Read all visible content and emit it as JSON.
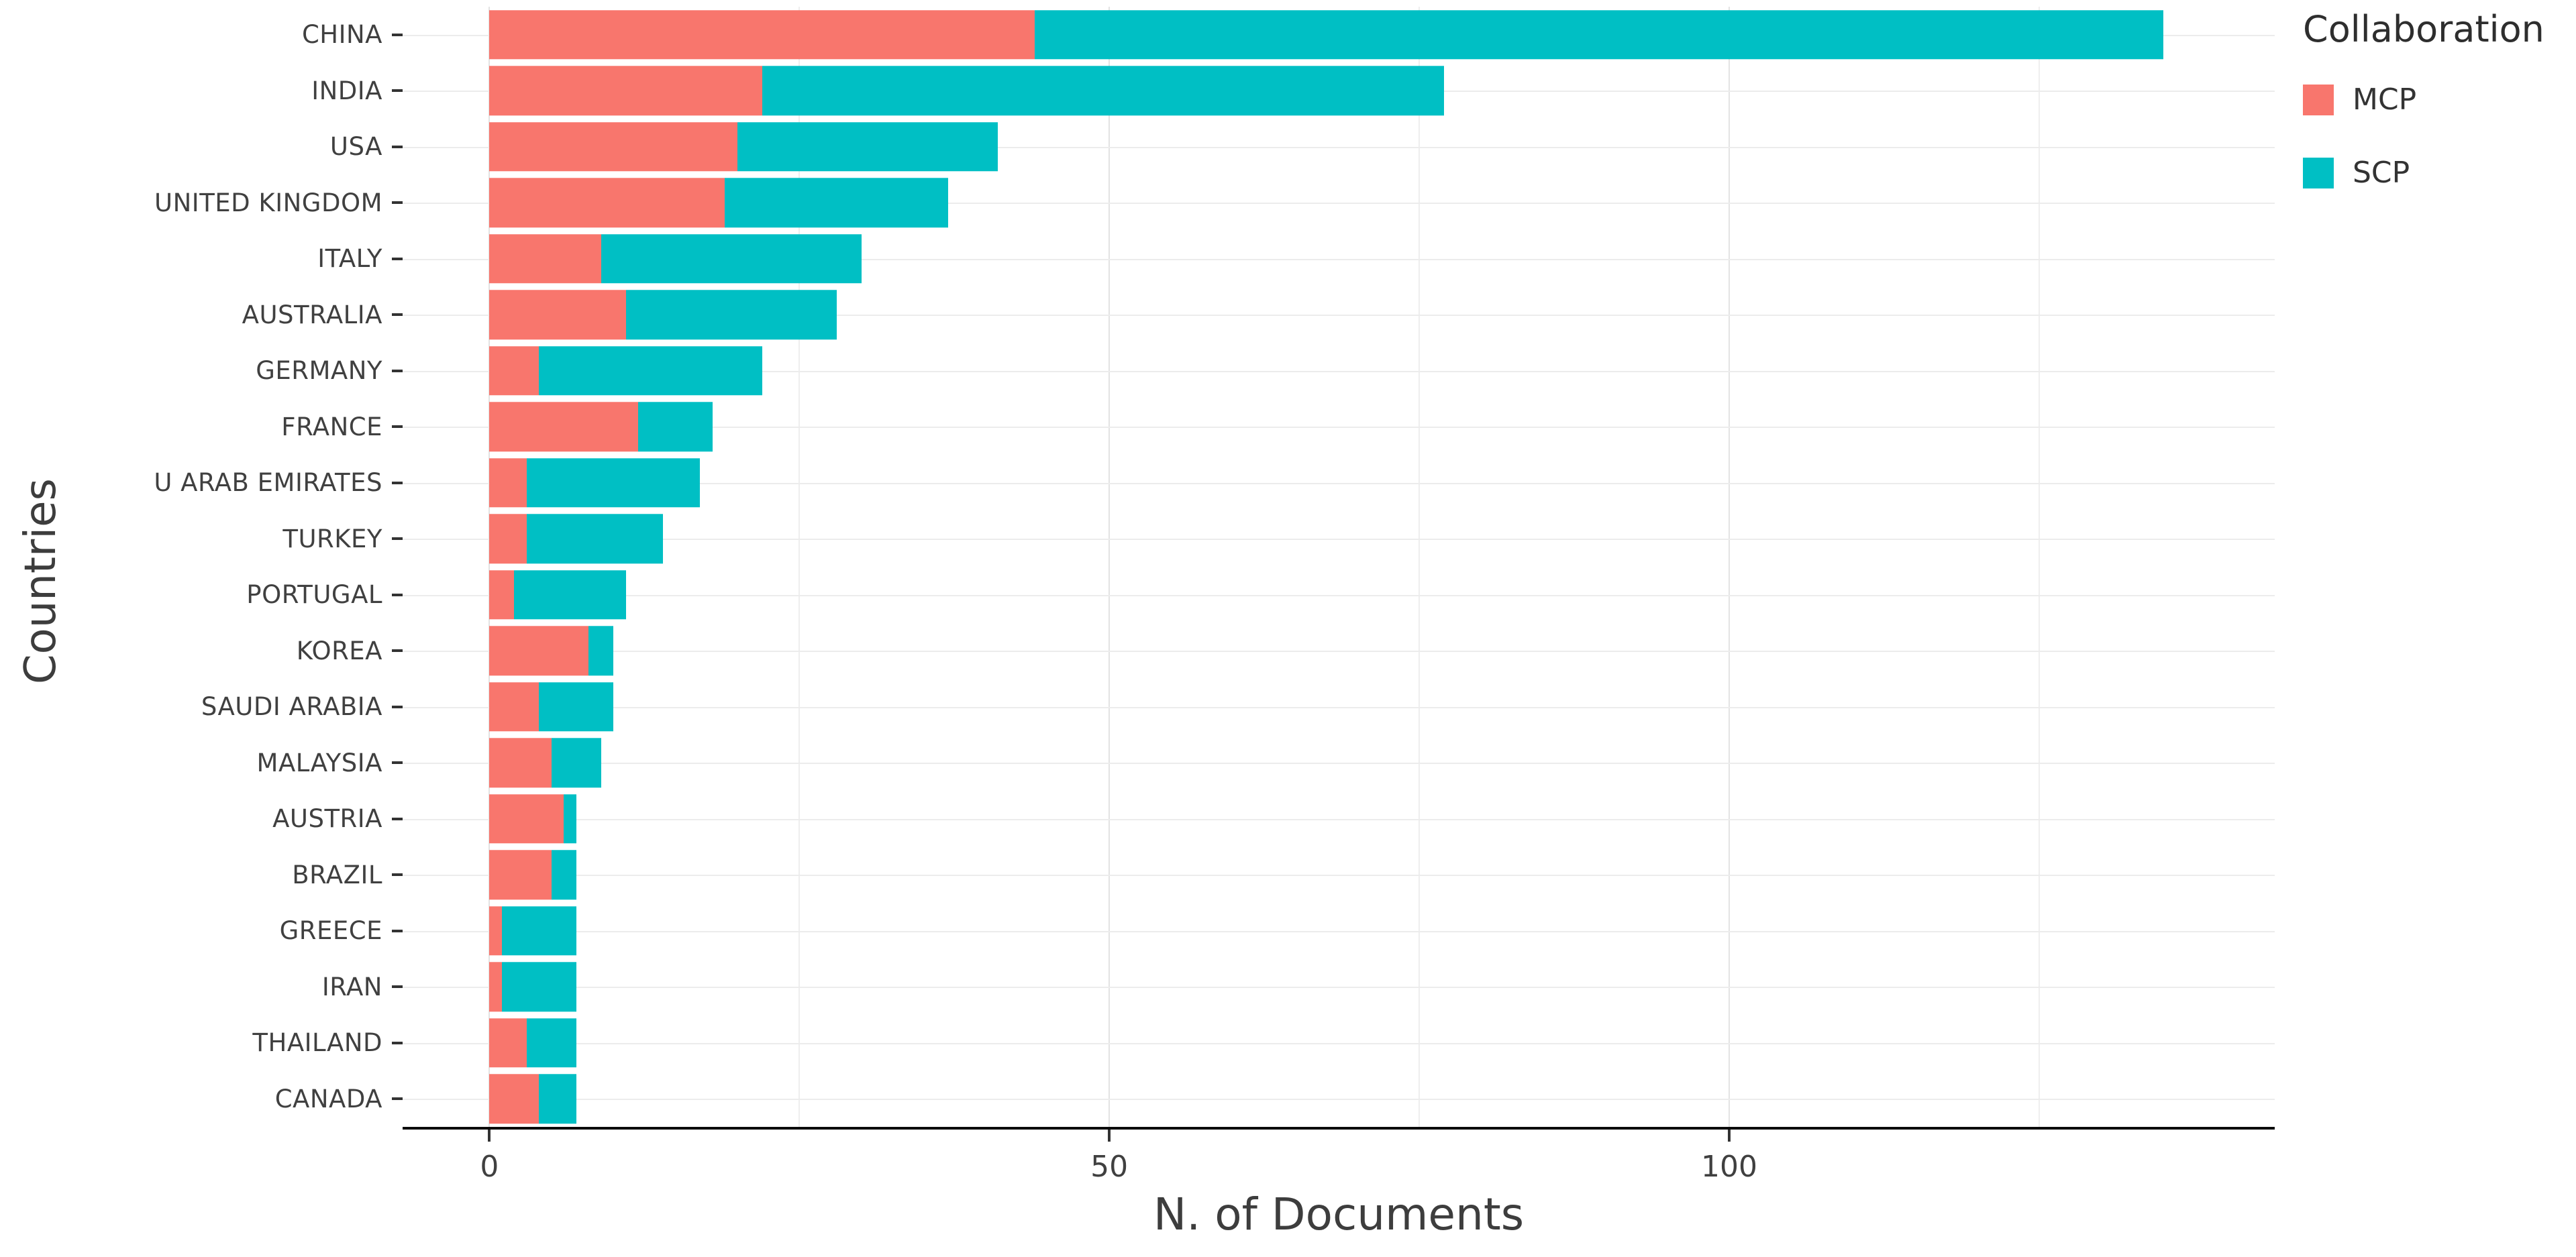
{
  "chart_data": {
    "type": "bar",
    "orientation": "horizontal",
    "stacked": true,
    "title": "",
    "xlabel": "N. of Documents",
    "ylabel": "Countries",
    "legend_title": "Collaboration",
    "legend_position": "right-top",
    "grid": true,
    "background": "#ffffff",
    "categories": [
      "CHINA",
      "INDIA",
      "USA",
      "UNITED KINGDOM",
      "ITALY",
      "AUSTRALIA",
      "GERMANY",
      "FRANCE",
      "U ARAB EMIRATES",
      "TURKEY",
      "PORTUGAL",
      "KOREA",
      "SAUDI ARABIA",
      "MALAYSIA",
      "AUSTRIA",
      "BRAZIL",
      "GREECE",
      "IRAN",
      "THAILAND",
      "CANADA"
    ],
    "series": [
      {
        "name": "MCP",
        "color": "#F8766D",
        "values": [
          44,
          22,
          20,
          19,
          9,
          11,
          4,
          12,
          3,
          3,
          2,
          8,
          4,
          5,
          6,
          5,
          1,
          1,
          3,
          4
        ]
      },
      {
        "name": "SCP",
        "color": "#00BFC4",
        "values": [
          91,
          55,
          21,
          18,
          21,
          17,
          18,
          6,
          14,
          11,
          9,
          2,
          6,
          4,
          1,
          2,
          6,
          6,
          4,
          3
        ]
      }
    ],
    "x_axis": {
      "ticks": [
        0,
        50,
        100
      ],
      "minor_ticks": [
        25,
        75,
        125
      ],
      "domain_min": -7,
      "domain_max": 144
    }
  }
}
